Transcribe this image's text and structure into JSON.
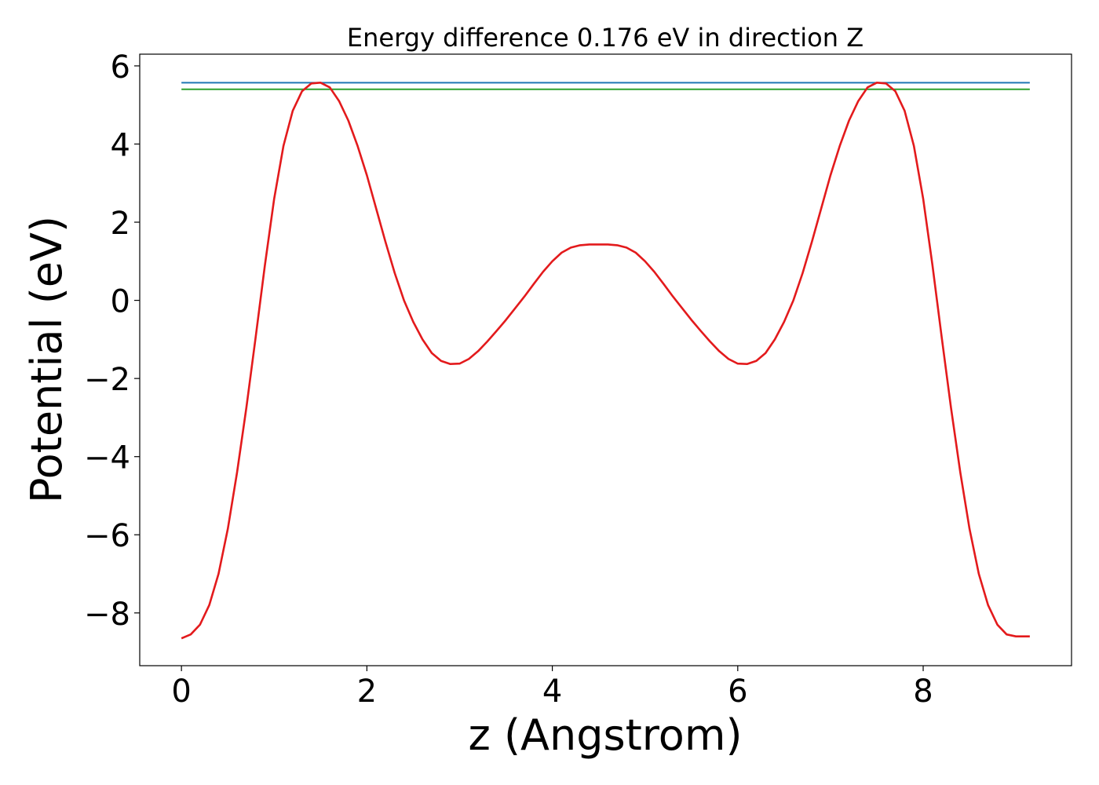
{
  "chart_data": {
    "type": "line",
    "title": "Energy difference 0.176 eV in direction Z",
    "xlabel": "z (Angstrom)",
    "ylabel": "Potential (eV)",
    "xlim": [
      -0.45,
      9.6
    ],
    "ylim": [
      -9.35,
      6.3
    ],
    "xticks": [
      0,
      2,
      4,
      6,
      8
    ],
    "xtick_labels": [
      "0",
      "2",
      "4",
      "6",
      "8"
    ],
    "yticks": [
      -8,
      -6,
      -4,
      -2,
      0,
      2,
      4,
      6
    ],
    "ytick_labels": [
      "−8",
      "−6",
      "−4",
      "−2",
      "0",
      "2",
      "4",
      "6"
    ],
    "grid": false,
    "series": [
      {
        "color": "#1f77b4",
        "x": [
          0,
          9.15
        ],
        "y": [
          5.57,
          5.57
        ]
      },
      {
        "color": "#2ca02c",
        "x": [
          0,
          9.15
        ],
        "y": [
          5.4,
          5.4
        ]
      },
      {
        "color": "#e31a1c",
        "x": [
          0.0,
          0.1,
          0.2,
          0.3,
          0.4,
          0.5,
          0.6,
          0.7,
          0.8,
          0.9,
          1.0,
          1.1,
          1.2,
          1.3,
          1.4,
          1.5,
          1.6,
          1.7,
          1.8,
          1.9,
          2.0,
          2.1,
          2.2,
          2.3,
          2.4,
          2.5,
          2.6,
          2.7,
          2.8,
          2.9,
          3.0,
          3.1,
          3.2,
          3.3,
          3.4,
          3.5,
          3.6,
          3.7,
          3.8,
          3.9,
          4.0,
          4.1,
          4.2,
          4.3,
          4.4,
          4.5,
          4.6,
          4.7,
          4.8,
          4.9,
          5.0,
          5.1,
          5.2,
          5.3,
          5.4,
          5.5,
          5.6,
          5.7,
          5.8,
          5.9,
          6.0,
          6.1,
          6.2,
          6.3,
          6.4,
          6.5,
          6.6,
          6.7,
          6.8,
          6.9,
          7.0,
          7.1,
          7.2,
          7.3,
          7.4,
          7.5,
          7.6,
          7.7,
          7.8,
          7.9,
          8.0,
          8.1,
          8.2,
          8.3,
          8.4,
          8.5,
          8.6,
          8.7,
          8.8,
          8.9,
          9.0,
          9.1,
          9.15
        ],
        "y": [
          -8.65,
          -8.55,
          -8.3,
          -7.8,
          -7.0,
          -5.85,
          -4.4,
          -2.75,
          -0.95,
          0.9,
          2.6,
          3.95,
          4.85,
          5.35,
          5.55,
          5.57,
          5.45,
          5.1,
          4.6,
          3.95,
          3.2,
          2.35,
          1.5,
          0.7,
          0.0,
          -0.55,
          -1.0,
          -1.35,
          -1.55,
          -1.63,
          -1.62,
          -1.5,
          -1.3,
          -1.05,
          -0.78,
          -0.5,
          -0.2,
          0.1,
          0.42,
          0.73,
          1.0,
          1.22,
          1.35,
          1.41,
          1.43,
          1.43,
          1.43,
          1.41,
          1.35,
          1.22,
          1.0,
          0.73,
          0.42,
          0.1,
          -0.2,
          -0.5,
          -0.78,
          -1.05,
          -1.3,
          -1.5,
          -1.62,
          -1.63,
          -1.55,
          -1.35,
          -1.0,
          -0.55,
          0.0,
          0.7,
          1.5,
          2.35,
          3.2,
          3.95,
          4.6,
          5.1,
          5.45,
          5.57,
          5.55,
          5.35,
          4.85,
          3.95,
          2.6,
          0.9,
          -0.95,
          -2.75,
          -4.4,
          -5.85,
          -7.0,
          -7.8,
          -8.3,
          -8.55,
          -8.6,
          -8.6,
          -8.6
        ]
      }
    ]
  }
}
